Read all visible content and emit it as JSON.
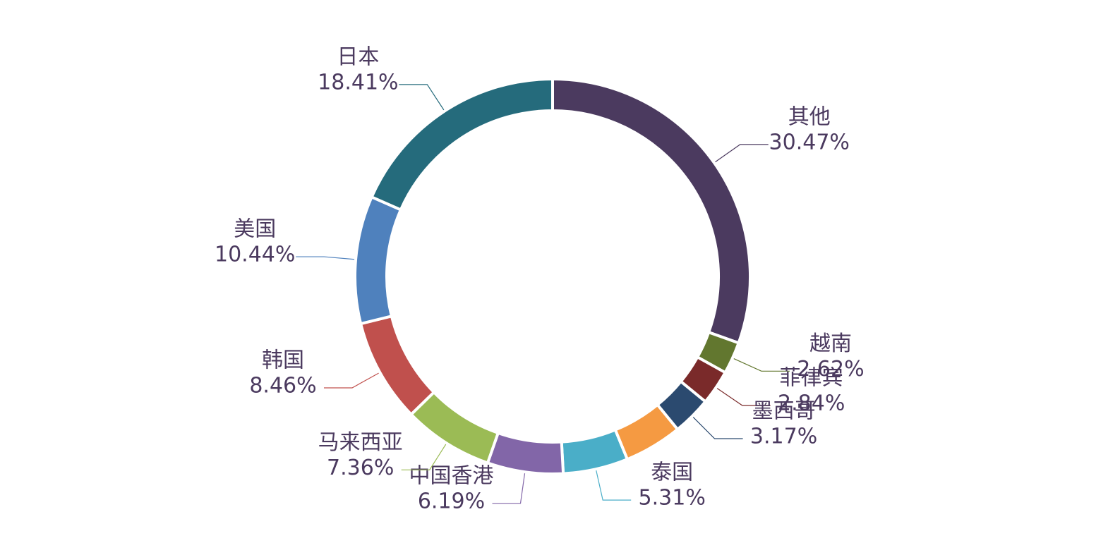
{
  "chart_data": {
    "type": "donut",
    "categories": [
      "其他",
      "越南",
      "菲律宾",
      "墨西哥",
      null,
      "泰国",
      "中国香港",
      "马来西亚",
      "韩国",
      "美国",
      "日本"
    ],
    "values": [
      30.47,
      2.62,
      2.84,
      3.17,
      4.73,
      5.31,
      6.19,
      7.36,
      8.46,
      10.44,
      18.41
    ],
    "value_labels": [
      "30.47%",
      "2.62%",
      "2.84%",
      "3.17%",
      null,
      "5.31%",
      "6.19%",
      "7.36%",
      "8.46%",
      "10.44%",
      "18.41%"
    ],
    "colors": [
      "#4b3a5f",
      "#62772f",
      "#7a2a2a",
      "#2b4a6f",
      "#f59a42",
      "#4aaec8",
      "#8266a8",
      "#9bbb55",
      "#c0504d",
      "#4f81bd",
      "#256b7c"
    ]
  }
}
